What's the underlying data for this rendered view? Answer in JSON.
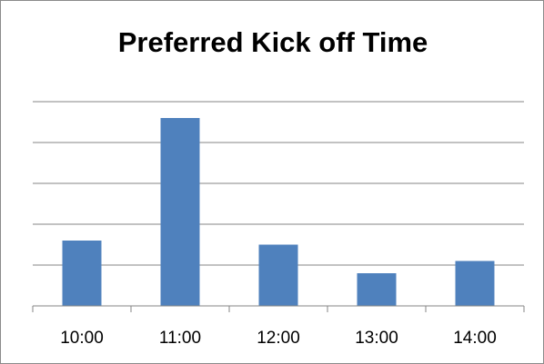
{
  "chart_data": {
    "type": "bar",
    "title": "Preferred Kick off Time",
    "xlabel": "",
    "ylabel": "",
    "categories": [
      "10:00",
      "11:00",
      "12:00",
      "13:00",
      "14:00"
    ],
    "values": [
      1.6,
      4.6,
      1.5,
      0.8,
      1.1
    ],
    "ylim": [
      0,
      5
    ],
    "y_axis_labels_visible": false,
    "grid": true,
    "legend": "none",
    "bar_color": "#4F81BD",
    "grid_color": "#868686"
  }
}
